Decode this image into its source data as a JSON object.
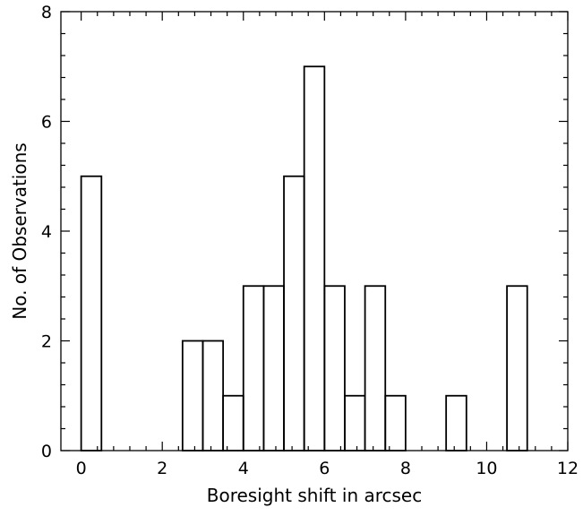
{
  "chart_data": {
    "type": "bar",
    "title": "",
    "xlabel": "Boresight shift in arcsec",
    "ylabel": "No. of Observations",
    "xlim": [
      -0.5,
      12
    ],
    "ylim": [
      0,
      8
    ],
    "bin_width": 0.5,
    "bin_starts": [
      0,
      0.5,
      1,
      1.5,
      2,
      2.5,
      3,
      3.5,
      4,
      4.5,
      5,
      5.5,
      6,
      6.5,
      7,
      7.5,
      8,
      8.5,
      9,
      9.5,
      10,
      10.5
    ],
    "values": [
      5,
      0,
      0,
      0,
      0,
      2,
      2,
      1,
      3,
      3,
      5,
      7,
      3,
      1,
      3,
      1,
      0,
      0,
      1,
      0,
      0,
      3
    ],
    "x_ticks": [
      0,
      2,
      4,
      6,
      8,
      10,
      12
    ],
    "x_tick_labels": [
      "0",
      "2",
      "4",
      "6",
      "8",
      "10",
      "12"
    ],
    "y_ticks": [
      0,
      2,
      4,
      6,
      8
    ],
    "y_tick_labels": [
      "0",
      "2",
      "4",
      "6",
      "8"
    ],
    "x_minor_step": 0.4,
    "y_minor_step": 0.4,
    "grid": false,
    "legend": "none",
    "colors": {
      "axis": "#000000",
      "bars_stroke": "#000000",
      "background": "#ffffff"
    }
  }
}
